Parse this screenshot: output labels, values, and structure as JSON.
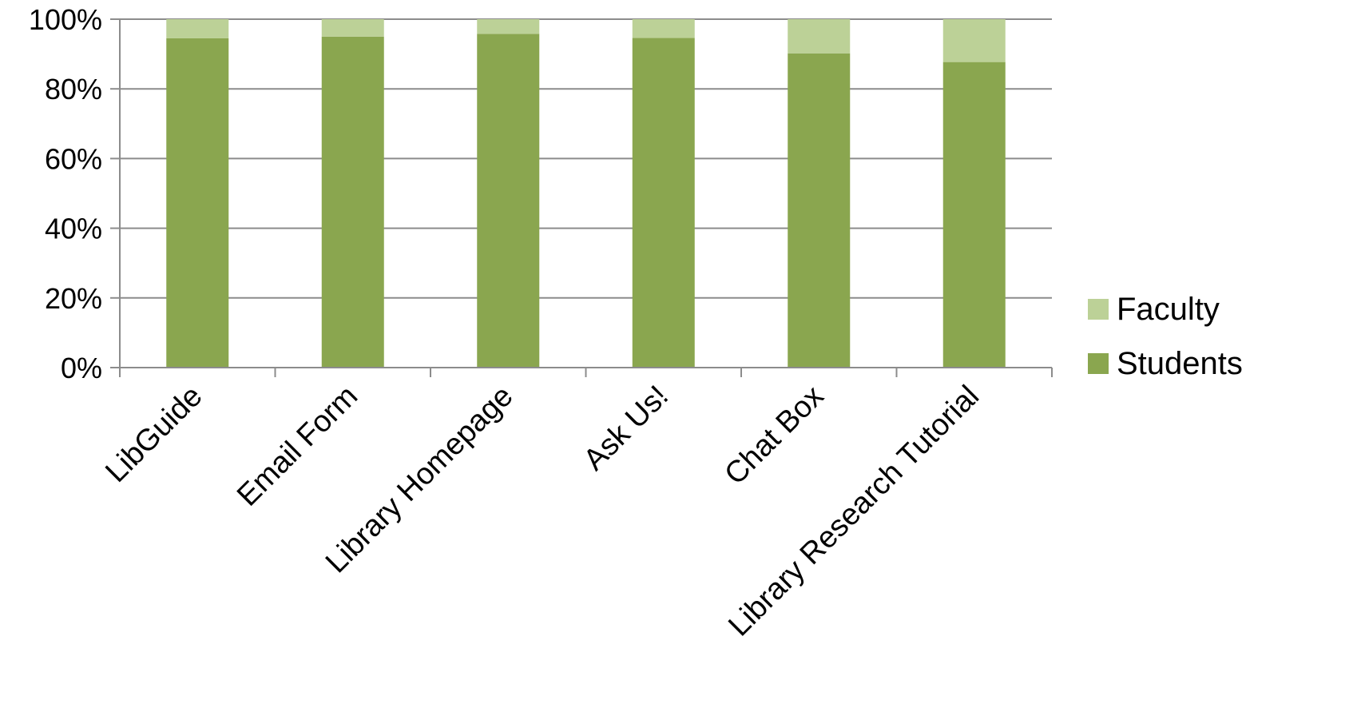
{
  "chart_data": {
    "type": "bar",
    "stacked": true,
    "normalized": true,
    "categories": [
      "LibGuide",
      "Email Form",
      "Library Homepage",
      "Ask Us!",
      "Chat Box",
      "Library Research Tutorial"
    ],
    "series": [
      {
        "name": "Students",
        "values": [
          94.5,
          95.0,
          95.8,
          94.6,
          90.2,
          87.7
        ],
        "color": "#8aa64f"
      },
      {
        "name": "Faculty",
        "values": [
          5.5,
          5.0,
          4.2,
          5.4,
          9.8,
          12.3
        ],
        "color": "#bcd197"
      }
    ],
    "y_ticks": [
      "0%",
      "20%",
      "40%",
      "60%",
      "80%",
      "100%"
    ],
    "ylim": [
      0,
      100
    ],
    "grid": true,
    "legend_position": "right"
  }
}
